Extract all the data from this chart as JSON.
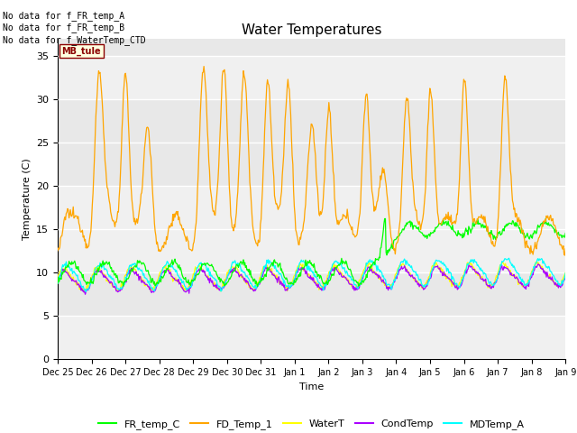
{
  "title": "Water Temperatures",
  "xlabel": "Time",
  "ylabel": "Temperature (C)",
  "ylim": [
    0,
    37
  ],
  "yticks": [
    0,
    5,
    10,
    15,
    20,
    25,
    30,
    35
  ],
  "fig_bg_color": "#ffffff",
  "plot_bg_color": "#e8e8e8",
  "band_light": "#f0f0f0",
  "annotations": [
    "No data for f_FR_temp_A",
    "No data for f_FR_temp_B",
    "No data for f_WaterTemp_CTD"
  ],
  "mb_tule_label": "MB_tule",
  "xtick_labels": [
    "Dec 25",
    "Dec 26",
    "Dec 27",
    "Dec 28",
    "Dec 29",
    "Dec 30",
    "Dec 31",
    "Jan 1",
    "Jan 2",
    "Jan 3",
    "Jan 4",
    "Jan 5",
    "Jan 6",
    "Jan 7",
    "Jan 8",
    "Jan 9"
  ],
  "legend": [
    {
      "label": "FR_temp_C",
      "color": "#00ff00"
    },
    {
      "label": "FD_Temp_1",
      "color": "#ffa500"
    },
    {
      "label": "WaterT",
      "color": "#ffff00"
    },
    {
      "label": "CondTemp",
      "color": "#aa00ff"
    },
    {
      "label": "MDTemp_A",
      "color": "#00ffff"
    }
  ],
  "grid_color": "#ffffff",
  "num_days": 15
}
